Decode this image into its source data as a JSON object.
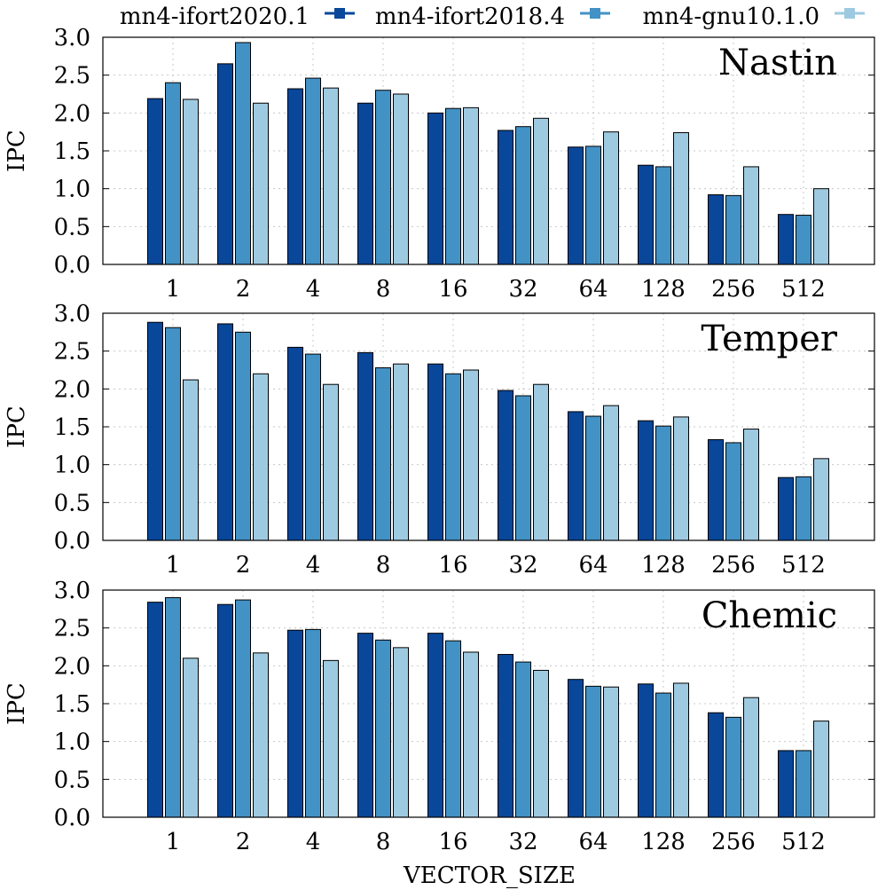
{
  "legend": {
    "items": [
      {
        "label": "mn4-ifort2020.1",
        "color": "#08479A"
      },
      {
        "label": "mn4-ifort2018.4",
        "color": "#4292C6"
      },
      {
        "label": "mn4-gnu10.1.0",
        "color": "#9ECAE1"
      }
    ]
  },
  "xlabel": "VECTOR_SIZE",
  "chart_data": [
    {
      "type": "bar",
      "title": "Nastin",
      "ylabel": "IPC",
      "ylim": [
        0,
        3
      ],
      "yticks": [
        "0.0",
        "0.5",
        "1.0",
        "1.5",
        "2.0",
        "2.5",
        "3.0"
      ],
      "categories": [
        "1",
        "2",
        "4",
        "8",
        "16",
        "32",
        "64",
        "128",
        "256",
        "512"
      ],
      "series": [
        {
          "name": "mn4-ifort2020.1",
          "values": [
            2.19,
            2.65,
            2.32,
            2.13,
            2.0,
            1.77,
            1.55,
            1.31,
            0.92,
            0.66
          ]
        },
        {
          "name": "mn4-ifort2018.4",
          "values": [
            2.4,
            2.93,
            2.46,
            2.3,
            2.06,
            1.82,
            1.56,
            1.29,
            0.91,
            0.65
          ]
        },
        {
          "name": "mn4-gnu10.1.0",
          "values": [
            2.18,
            2.13,
            2.33,
            2.25,
            2.07,
            1.93,
            1.75,
            1.74,
            1.29,
            1.0
          ]
        }
      ]
    },
    {
      "type": "bar",
      "title": "Temper",
      "ylabel": "IPC",
      "ylim": [
        0,
        3
      ],
      "yticks": [
        "0.0",
        "0.5",
        "1.0",
        "1.5",
        "2.0",
        "2.5",
        "3.0"
      ],
      "categories": [
        "1",
        "2",
        "4",
        "8",
        "16",
        "32",
        "64",
        "128",
        "256",
        "512"
      ],
      "series": [
        {
          "name": "mn4-ifort2020.1",
          "values": [
            2.88,
            2.86,
            2.55,
            2.48,
            2.33,
            1.98,
            1.7,
            1.58,
            1.33,
            0.83
          ]
        },
        {
          "name": "mn4-ifort2018.4",
          "values": [
            2.81,
            2.75,
            2.46,
            2.28,
            2.2,
            1.91,
            1.64,
            1.51,
            1.29,
            0.84
          ]
        },
        {
          "name": "mn4-gnu10.1.0",
          "values": [
            2.12,
            2.2,
            2.06,
            2.33,
            2.25,
            2.06,
            1.78,
            1.63,
            1.47,
            1.08
          ]
        }
      ]
    },
    {
      "type": "bar",
      "title": "Chemic",
      "ylabel": "IPC",
      "ylim": [
        0,
        3
      ],
      "yticks": [
        "0.0",
        "0.5",
        "1.0",
        "1.5",
        "2.0",
        "2.5",
        "3.0"
      ],
      "categories": [
        "1",
        "2",
        "4",
        "8",
        "16",
        "32",
        "64",
        "128",
        "256",
        "512"
      ],
      "series": [
        {
          "name": "mn4-ifort2020.1",
          "values": [
            2.84,
            2.81,
            2.47,
            2.43,
            2.43,
            2.15,
            1.82,
            1.76,
            1.38,
            0.88
          ]
        },
        {
          "name": "mn4-ifort2018.4",
          "values": [
            2.9,
            2.87,
            2.48,
            2.34,
            2.33,
            2.05,
            1.73,
            1.64,
            1.32,
            0.88
          ]
        },
        {
          "name": "mn4-gnu10.1.0",
          "values": [
            2.1,
            2.17,
            2.07,
            2.24,
            2.18,
            1.94,
            1.72,
            1.77,
            1.58,
            1.27
          ]
        }
      ]
    }
  ]
}
